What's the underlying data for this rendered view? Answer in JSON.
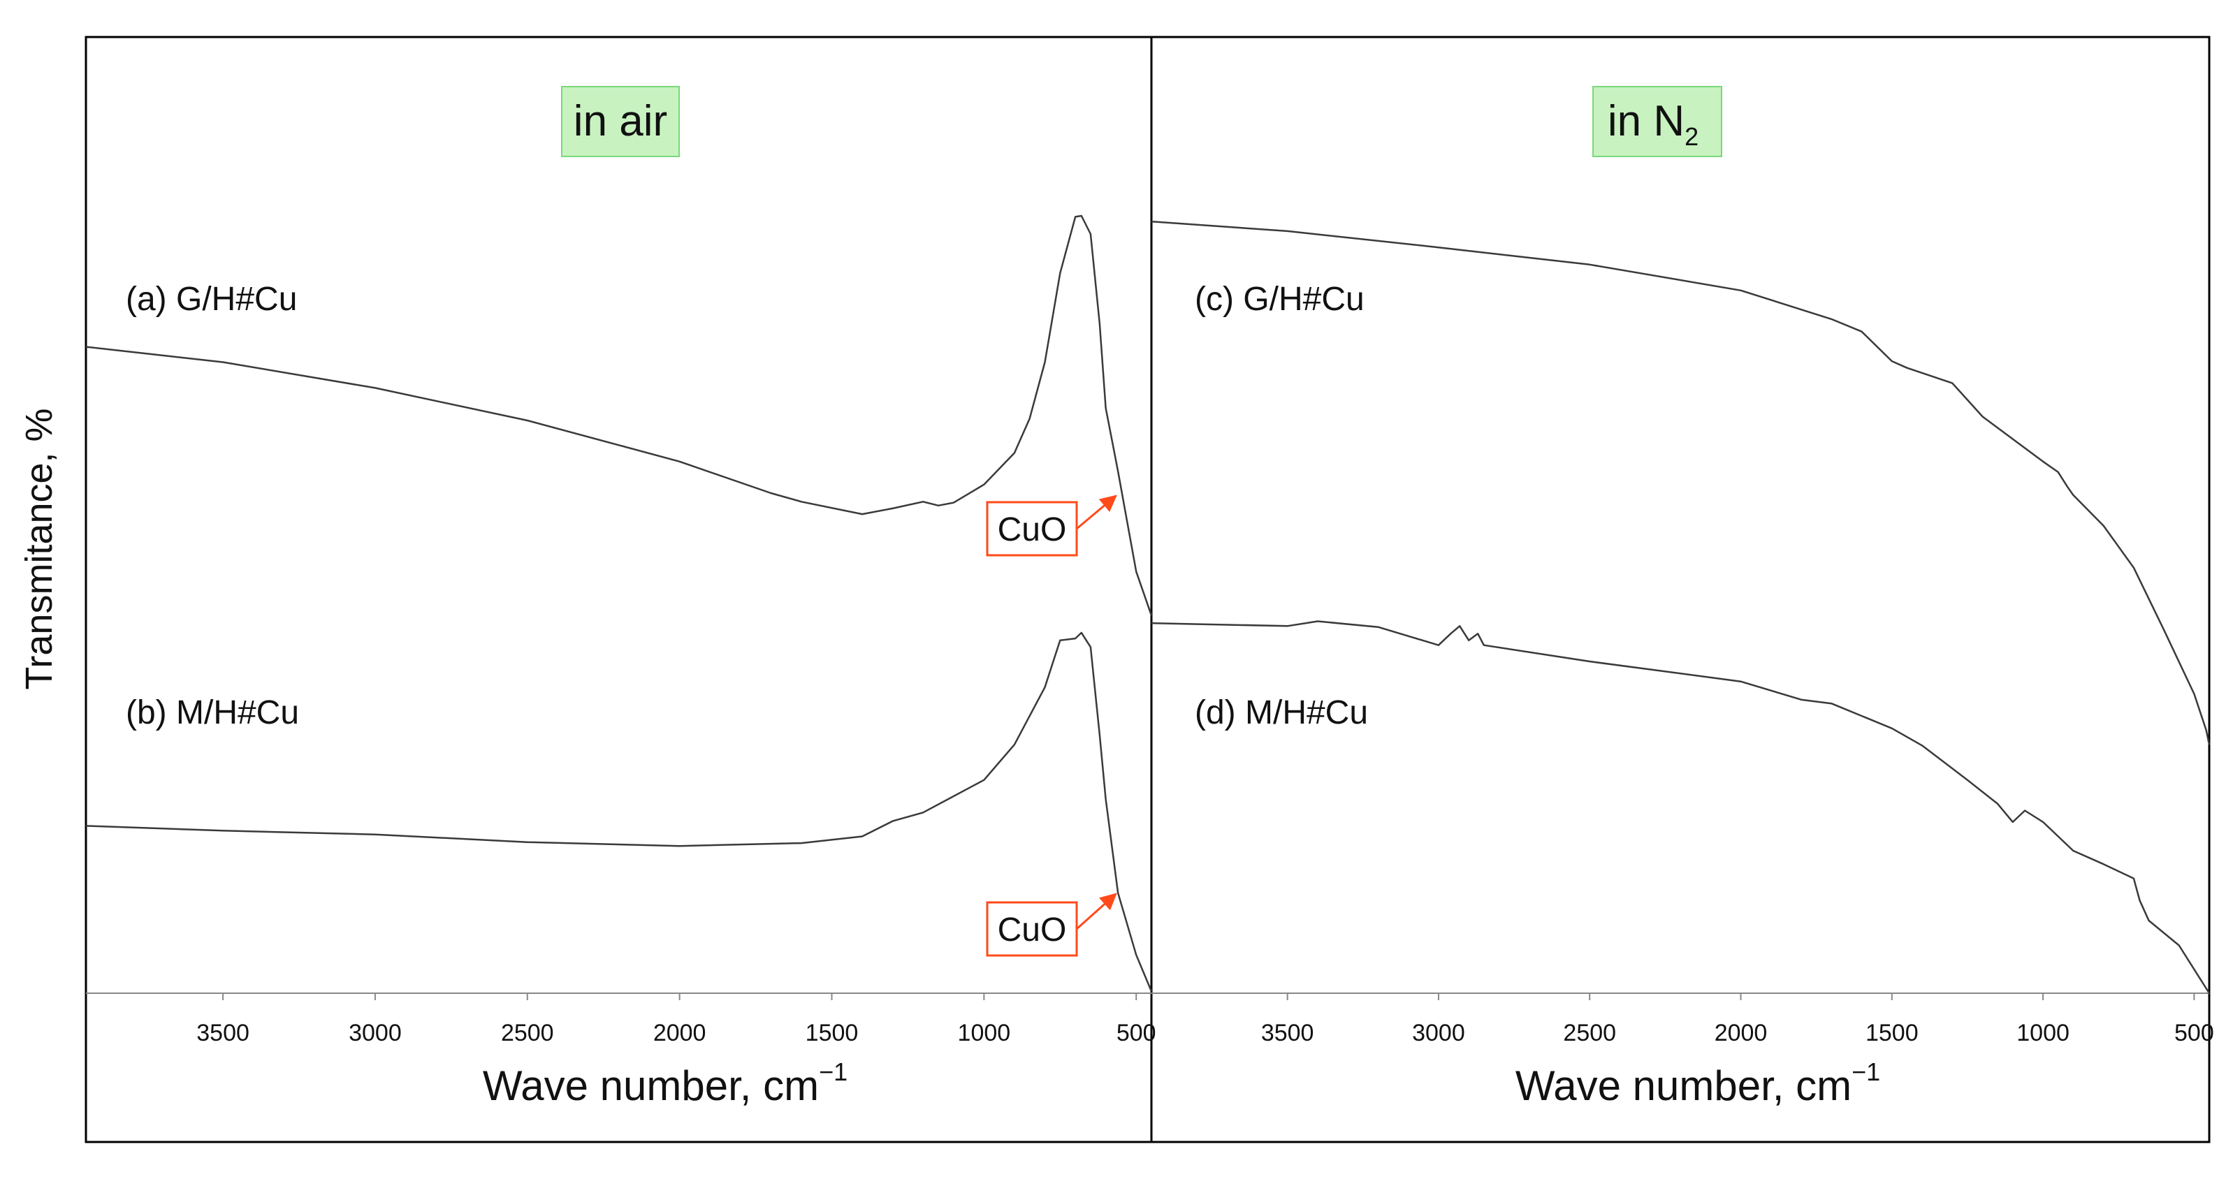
{
  "figure": {
    "ylabel": "Transmitance, %",
    "colors": {
      "line": "#3a3a3a",
      "label_bg": "#c8f2c0",
      "label_border": "#7ad87a",
      "annotation": "#ff4a1a",
      "frame": "#000000"
    }
  },
  "chart_data": [
    {
      "type": "line",
      "panel": "left",
      "title": "in air",
      "xlabel": "Wave number, cm",
      "xlabel_sup": "−1",
      "xlim": [
        3950,
        450
      ],
      "xticks": [
        3500,
        3000,
        2500,
        2000,
        1500,
        1000,
        500
      ],
      "xtick_labels": [
        "3500",
        "3000",
        "2500",
        "2000",
        "1500",
        "1000",
        "500"
      ],
      "ylabel": "Transmitance, %",
      "ylim": [
        0,
        100
      ],
      "series": [
        {
          "name": "(a) G/H#Cu",
          "points": [
            [
              3950,
              67.6
            ],
            [
              3500,
              66.0
            ],
            [
              3000,
              63.3
            ],
            [
              2500,
              59.9
            ],
            [
              2000,
              55.6
            ],
            [
              1700,
              52.3
            ],
            [
              1600,
              51.4
            ],
            [
              1400,
              50.1
            ],
            [
              1300,
              50.7
            ],
            [
              1200,
              51.4
            ],
            [
              1150,
              51.0
            ],
            [
              1100,
              51.3
            ],
            [
              1000,
              53.2
            ],
            [
              900,
              56.5
            ],
            [
              850,
              60.1
            ],
            [
              800,
              66.0
            ],
            [
              750,
              75.3
            ],
            [
              700,
              81.2
            ],
            [
              680,
              81.3
            ],
            [
              650,
              79.4
            ],
            [
              620,
              70.0
            ],
            [
              600,
              61.2
            ],
            [
              560,
              54.6
            ],
            [
              500,
              44.1
            ],
            [
              450,
              39.5
            ]
          ],
          "annotation": {
            "text": "CuO",
            "x": 560,
            "y": 51.5
          }
        },
        {
          "name": "(b) M/H#Cu",
          "points": [
            [
              3950,
              17.5
            ],
            [
              3500,
              17.0
            ],
            [
              3000,
              16.6
            ],
            [
              2500,
              15.8
            ],
            [
              2000,
              15.4
            ],
            [
              1600,
              15.7
            ],
            [
              1400,
              16.4
            ],
            [
              1300,
              18.0
            ],
            [
              1200,
              18.9
            ],
            [
              1000,
              22.3
            ],
            [
              900,
              26.0
            ],
            [
              800,
              32.0
            ],
            [
              750,
              36.9
            ],
            [
              700,
              37.1
            ],
            [
              680,
              37.7
            ],
            [
              650,
              36.2
            ],
            [
              620,
              27.0
            ],
            [
              600,
              20.3
            ],
            [
              560,
              10.5
            ],
            [
              500,
              4.0
            ],
            [
              450,
              0.2
            ]
          ],
          "annotation": {
            "text": "CuO",
            "x": 560,
            "y": 10.5
          }
        }
      ]
    },
    {
      "type": "line",
      "panel": "right",
      "title": "in N",
      "title_sub": "2",
      "xlabel": "Wave number, cm",
      "xlabel_sup": "−1",
      "xlim": [
        3950,
        450
      ],
      "xticks": [
        3500,
        3000,
        2500,
        2000,
        1500,
        1000,
        500
      ],
      "xtick_labels": [
        "3500",
        "3000",
        "2500",
        "2000",
        "1500",
        "1000",
        "500"
      ],
      "ylabel": "Transmitance, %",
      "ylim": [
        0,
        100
      ],
      "series": [
        {
          "name": "(c) G/H#Cu",
          "points": [
            [
              3950,
              80.7
            ],
            [
              3500,
              79.7
            ],
            [
              3000,
              78.0
            ],
            [
              2500,
              76.2
            ],
            [
              2000,
              73.5
            ],
            [
              1700,
              70.5
            ],
            [
              1600,
              69.2
            ],
            [
              1500,
              66.1
            ],
            [
              1450,
              65.4
            ],
            [
              1300,
              63.8
            ],
            [
              1200,
              60.3
            ],
            [
              1000,
              55.6
            ],
            [
              950,
              54.5
            ],
            [
              920,
              53.0
            ],
            [
              900,
              52.1
            ],
            [
              800,
              48.9
            ],
            [
              700,
              44.5
            ],
            [
              600,
              38.0
            ],
            [
              500,
              31.3
            ],
            [
              460,
              27.5
            ],
            [
              450,
              26.0
            ]
          ]
        },
        {
          "name": "(d) M/H#Cu",
          "points": [
            [
              3950,
              38.7
            ],
            [
              3500,
              38.4
            ],
            [
              3400,
              38.9
            ],
            [
              3200,
              38.3
            ],
            [
              3000,
              36.4
            ],
            [
              2960,
              37.6
            ],
            [
              2930,
              38.4
            ],
            [
              2900,
              36.9
            ],
            [
              2870,
              37.6
            ],
            [
              2850,
              36.4
            ],
            [
              2500,
              34.7
            ],
            [
              2000,
              32.6
            ],
            [
              1800,
              30.7
            ],
            [
              1700,
              30.3
            ],
            [
              1500,
              27.7
            ],
            [
              1400,
              25.9
            ],
            [
              1250,
              22.3
            ],
            [
              1150,
              19.8
            ],
            [
              1100,
              17.9
            ],
            [
              1060,
              19.1
            ],
            [
              1000,
              17.9
            ],
            [
              900,
              14.9
            ],
            [
              800,
              13.5
            ],
            [
              700,
              12.0
            ],
            [
              680,
              9.7
            ],
            [
              650,
              7.6
            ],
            [
              550,
              5.0
            ],
            [
              450,
              0.0
            ]
          ]
        }
      ]
    }
  ]
}
